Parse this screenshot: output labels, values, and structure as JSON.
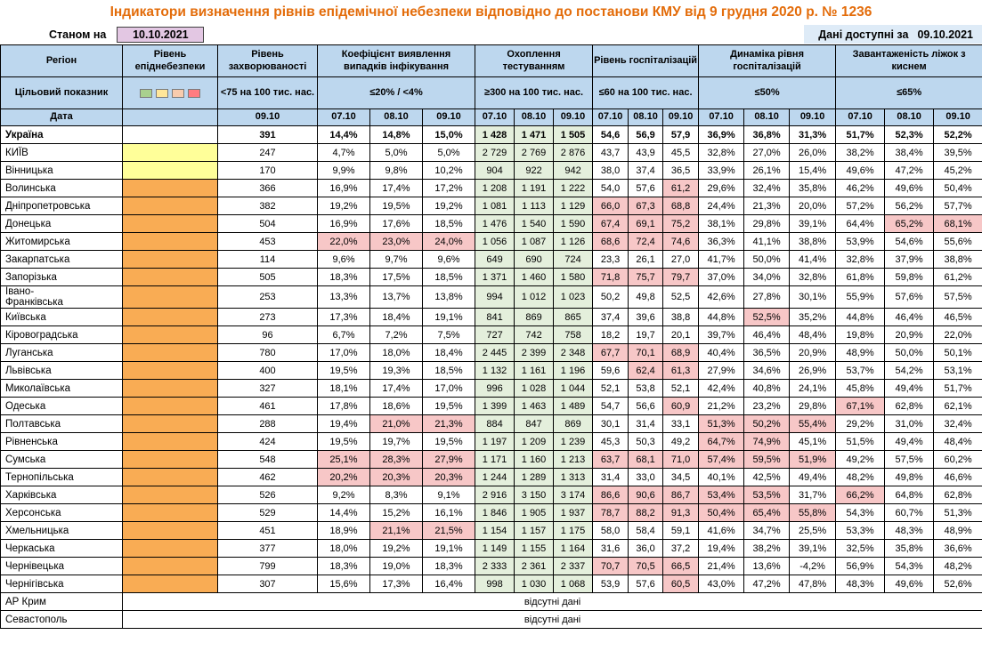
{
  "title": "Індикатори визначення рівнів епідемічної небезпеки відповідно до постанови КМУ від 9 грудня 2020 р. № 1236",
  "meta": {
    "as_of_label": "Станом на",
    "as_of_date": "10.10.2021",
    "available_label": "Дані доступні за",
    "available_date": "09.10.2021"
  },
  "header": {
    "region": "Регіон",
    "target_label": "Цільовий показник",
    "date_label": "Дата",
    "groups": [
      {
        "label": "Рівень епіднебезпеки",
        "cols": 1,
        "target": "",
        "target_legend": [
          "#A9D08E",
          "#FFE699",
          "#F8CBAD",
          "#FF7C80"
        ],
        "dates": [
          ""
        ]
      },
      {
        "label": "Рівень захворюваності",
        "cols": 1,
        "target": "<75 на 100 тис. нас.",
        "dates": [
          "09.10"
        ]
      },
      {
        "label": "Коефіцієнт виявлення випадків інфікування",
        "cols": 3,
        "target": "≤20% / <4%",
        "dates": [
          "07.10",
          "08.10",
          "09.10"
        ]
      },
      {
        "label": "Охоплення тестуванням",
        "cols": 3,
        "target": "≥300 на 100 тис. нас.",
        "dates": [
          "07.10",
          "08.10",
          "09.10"
        ]
      },
      {
        "label": "Рівень госпіталізацій",
        "cols": 3,
        "target": "≤60 на 100 тис. нас.",
        "dates": [
          "07.10",
          "08.10",
          "09.10"
        ]
      },
      {
        "label": "Динаміка рівня госпіталізацій",
        "cols": 3,
        "target": "≤50%",
        "dates": [
          "07.10",
          "08.10",
          "09.10"
        ]
      },
      {
        "label": "Завантаженість ліжок з киснем",
        "cols": 3,
        "target": "≤65%",
        "dates": [
          "07.10",
          "08.10",
          "09.10"
        ]
      }
    ]
  },
  "thresholds": {
    "detection_max": 20,
    "hosp_max": 60,
    "dynamics_max": 50,
    "beds_max": 65
  },
  "rows": [
    {
      "region": "Україна",
      "bold": true,
      "level": "none",
      "incidence": "391",
      "detection": [
        "14,4%",
        "14,8%",
        "15,0%"
      ],
      "testing": [
        "1 428",
        "1 471",
        "1 505"
      ],
      "hosp": [
        "54,6",
        "56,9",
        "57,9"
      ],
      "dynamics": [
        "36,9%",
        "36,8%",
        "31,3%"
      ],
      "beds": [
        "51,7%",
        "52,3%",
        "52,2%"
      ]
    },
    {
      "region": "КИЇВ",
      "bold": false,
      "level": "yellow",
      "incidence": "247",
      "detection": [
        "4,7%",
        "5,0%",
        "5,0%"
      ],
      "testing": [
        "2 729",
        "2 769",
        "2 876"
      ],
      "hosp": [
        "43,7",
        "43,9",
        "45,5"
      ],
      "dynamics": [
        "32,8%",
        "27,0%",
        "26,0%"
      ],
      "beds": [
        "38,2%",
        "38,4%",
        "39,5%"
      ]
    },
    {
      "region": "Вінницька",
      "bold": false,
      "level": "yellow",
      "incidence": "170",
      "detection": [
        "9,9%",
        "9,8%",
        "10,2%"
      ],
      "testing": [
        "904",
        "922",
        "942"
      ],
      "hosp": [
        "38,0",
        "37,4",
        "36,5"
      ],
      "dynamics": [
        "33,9%",
        "26,1%",
        "15,4%"
      ],
      "beds": [
        "49,6%",
        "47,2%",
        "45,2%"
      ]
    },
    {
      "region": "Волинська",
      "bold": false,
      "level": "orange",
      "incidence": "366",
      "detection": [
        "16,9%",
        "17,4%",
        "17,2%"
      ],
      "testing": [
        "1 208",
        "1 191",
        "1 222"
      ],
      "hosp": [
        "54,0",
        "57,6",
        "61,2"
      ],
      "dynamics": [
        "29,6%",
        "32,4%",
        "35,8%"
      ],
      "beds": [
        "46,2%",
        "49,6%",
        "50,4%"
      ]
    },
    {
      "region": "Дніпропетровська",
      "bold": false,
      "level": "orange",
      "incidence": "382",
      "detection": [
        "19,2%",
        "19,5%",
        "19,2%"
      ],
      "testing": [
        "1 081",
        "1 113",
        "1 129"
      ],
      "hosp": [
        "66,0",
        "67,3",
        "68,8"
      ],
      "dynamics": [
        "24,4%",
        "21,3%",
        "20,0%"
      ],
      "beds": [
        "57,2%",
        "56,2%",
        "57,7%"
      ]
    },
    {
      "region": "Донецька",
      "bold": false,
      "level": "orange",
      "incidence": "504",
      "detection": [
        "16,9%",
        "17,6%",
        "18,5%"
      ],
      "testing": [
        "1 476",
        "1 540",
        "1 590"
      ],
      "hosp": [
        "67,4",
        "69,1",
        "75,2"
      ],
      "dynamics": [
        "38,1%",
        "29,8%",
        "39,1%"
      ],
      "beds": [
        "64,4%",
        "65,2%",
        "68,1%"
      ]
    },
    {
      "region": "Житомирська",
      "bold": false,
      "level": "orange",
      "incidence": "453",
      "detection": [
        "22,0%",
        "23,0%",
        "24,0%"
      ],
      "testing": [
        "1 056",
        "1 087",
        "1 126"
      ],
      "hosp": [
        "68,6",
        "72,4",
        "74,6"
      ],
      "dynamics": [
        "36,3%",
        "41,1%",
        "38,8%"
      ],
      "beds": [
        "53,9%",
        "54,6%",
        "55,6%"
      ]
    },
    {
      "region": "Закарпатська",
      "bold": false,
      "level": "orange",
      "incidence": "114",
      "detection": [
        "9,6%",
        "9,7%",
        "9,6%"
      ],
      "testing": [
        "649",
        "690",
        "724"
      ],
      "hosp": [
        "23,3",
        "26,1",
        "27,0"
      ],
      "dynamics": [
        "41,7%",
        "50,0%",
        "41,4%"
      ],
      "beds": [
        "32,8%",
        "37,9%",
        "38,8%"
      ]
    },
    {
      "region": "Запорізька",
      "bold": false,
      "level": "orange",
      "incidence": "505",
      "detection": [
        "18,3%",
        "17,5%",
        "18,5%"
      ],
      "testing": [
        "1 371",
        "1 460",
        "1 580"
      ],
      "hosp": [
        "71,8",
        "75,7",
        "79,7"
      ],
      "dynamics": [
        "37,0%",
        "34,0%",
        "32,8%"
      ],
      "beds": [
        "61,8%",
        "59,8%",
        "61,2%"
      ]
    },
    {
      "region": "Івано-\nФранківська",
      "bold": false,
      "level": "orange",
      "incidence": "253",
      "detection": [
        "13,3%",
        "13,7%",
        "13,8%"
      ],
      "testing": [
        "994",
        "1 012",
        "1 023"
      ],
      "hosp": [
        "50,2",
        "49,8",
        "52,5"
      ],
      "dynamics": [
        "42,6%",
        "27,8%",
        "30,1%"
      ],
      "beds": [
        "55,9%",
        "57,6%",
        "57,5%"
      ]
    },
    {
      "region": "Київська",
      "bold": false,
      "level": "orange",
      "incidence": "273",
      "detection": [
        "17,3%",
        "18,4%",
        "19,1%"
      ],
      "testing": [
        "841",
        "869",
        "865"
      ],
      "hosp": [
        "37,4",
        "39,6",
        "38,8"
      ],
      "dynamics": [
        "44,8%",
        "52,5%",
        "35,2%"
      ],
      "beds": [
        "44,8%",
        "46,4%",
        "46,5%"
      ]
    },
    {
      "region": "Кіровоградська",
      "bold": false,
      "level": "orange",
      "incidence": "96",
      "detection": [
        "6,7%",
        "7,2%",
        "7,5%"
      ],
      "testing": [
        "727",
        "742",
        "758"
      ],
      "hosp": [
        "18,2",
        "19,7",
        "20,1"
      ],
      "dynamics": [
        "39,7%",
        "46,4%",
        "48,4%"
      ],
      "beds": [
        "19,8%",
        "20,9%",
        "22,0%"
      ]
    },
    {
      "region": "Луганська",
      "bold": false,
      "level": "orange",
      "incidence": "780",
      "detection": [
        "17,0%",
        "18,0%",
        "18,4%"
      ],
      "testing": [
        "2 445",
        "2 399",
        "2 348"
      ],
      "hosp": [
        "67,7",
        "70,1",
        "68,9"
      ],
      "dynamics": [
        "40,4%",
        "36,5%",
        "20,9%"
      ],
      "beds": [
        "48,9%",
        "50,0%",
        "50,1%"
      ]
    },
    {
      "region": "Львівська",
      "bold": false,
      "level": "orange",
      "incidence": "400",
      "detection": [
        "19,5%",
        "19,3%",
        "18,5%"
      ],
      "testing": [
        "1 132",
        "1 161",
        "1 196"
      ],
      "hosp": [
        "59,6",
        "62,4",
        "61,3"
      ],
      "dynamics": [
        "27,9%",
        "34,6%",
        "26,9%"
      ],
      "beds": [
        "53,7%",
        "54,2%",
        "53,1%"
      ]
    },
    {
      "region": "Миколаївська",
      "bold": false,
      "level": "orange",
      "incidence": "327",
      "detection": [
        "18,1%",
        "17,4%",
        "17,0%"
      ],
      "testing": [
        "996",
        "1 028",
        "1 044"
      ],
      "hosp": [
        "52,1",
        "53,8",
        "52,1"
      ],
      "dynamics": [
        "42,4%",
        "40,8%",
        "24,1%"
      ],
      "beds": [
        "45,8%",
        "49,4%",
        "51,7%"
      ]
    },
    {
      "region": "Одеська",
      "bold": false,
      "level": "orange",
      "incidence": "461",
      "detection": [
        "17,8%",
        "18,6%",
        "19,5%"
      ],
      "testing": [
        "1 399",
        "1 463",
        "1 489"
      ],
      "hosp": [
        "54,7",
        "56,6",
        "60,9"
      ],
      "dynamics": [
        "21,2%",
        "23,2%",
        "29,8%"
      ],
      "beds": [
        "67,1%",
        "62,8%",
        "62,1%"
      ]
    },
    {
      "region": "Полтавська",
      "bold": false,
      "level": "orange",
      "incidence": "288",
      "detection": [
        "19,4%",
        "21,0%",
        "21,3%"
      ],
      "testing": [
        "884",
        "847",
        "869"
      ],
      "hosp": [
        "30,1",
        "31,4",
        "33,1"
      ],
      "dynamics": [
        "51,3%",
        "50,2%",
        "55,4%"
      ],
      "beds": [
        "29,2%",
        "31,0%",
        "32,4%"
      ]
    },
    {
      "region": "Рівненська",
      "bold": false,
      "level": "orange",
      "incidence": "424",
      "detection": [
        "19,5%",
        "19,7%",
        "19,5%"
      ],
      "testing": [
        "1 197",
        "1 209",
        "1 239"
      ],
      "hosp": [
        "45,3",
        "50,3",
        "49,2"
      ],
      "dynamics": [
        "64,7%",
        "74,9%",
        "45,1%"
      ],
      "beds": [
        "51,5%",
        "49,4%",
        "48,4%"
      ]
    },
    {
      "region": "Сумська",
      "bold": false,
      "level": "orange",
      "incidence": "548",
      "detection": [
        "25,1%",
        "28,3%",
        "27,9%"
      ],
      "testing": [
        "1 171",
        "1 160",
        "1 213"
      ],
      "hosp": [
        "63,7",
        "68,1",
        "71,0"
      ],
      "dynamics": [
        "57,4%",
        "59,5%",
        "51,9%"
      ],
      "beds": [
        "49,2%",
        "57,5%",
        "60,2%"
      ]
    },
    {
      "region": "Тернопільська",
      "bold": false,
      "level": "orange",
      "incidence": "462",
      "detection": [
        "20,2%",
        "20,3%",
        "20,3%"
      ],
      "testing": [
        "1 244",
        "1 289",
        "1 313"
      ],
      "hosp": [
        "31,4",
        "33,0",
        "34,5"
      ],
      "dynamics": [
        "40,1%",
        "42,5%",
        "49,4%"
      ],
      "beds": [
        "48,2%",
        "49,8%",
        "46,6%"
      ]
    },
    {
      "region": "Харківська",
      "bold": false,
      "level": "orange",
      "incidence": "526",
      "detection": [
        "9,2%",
        "8,3%",
        "9,1%"
      ],
      "testing": [
        "2 916",
        "3 150",
        "3 174"
      ],
      "hosp": [
        "86,6",
        "90,6",
        "86,7"
      ],
      "dynamics": [
        "53,4%",
        "53,5%",
        "31,7%"
      ],
      "beds": [
        "66,2%",
        "64,8%",
        "62,8%"
      ]
    },
    {
      "region": "Херсонська",
      "bold": false,
      "level": "orange",
      "incidence": "529",
      "detection": [
        "14,4%",
        "15,2%",
        "16,1%"
      ],
      "testing": [
        "1 846",
        "1 905",
        "1 937"
      ],
      "hosp": [
        "78,7",
        "88,2",
        "91,3"
      ],
      "dynamics": [
        "50,4%",
        "65,4%",
        "55,8%"
      ],
      "beds": [
        "54,3%",
        "60,7%",
        "51,3%"
      ]
    },
    {
      "region": "Хмельницька",
      "bold": false,
      "level": "orange",
      "incidence": "451",
      "detection": [
        "18,9%",
        "21,1%",
        "21,5%"
      ],
      "testing": [
        "1 154",
        "1 157",
        "1 175"
      ],
      "hosp": [
        "58,0",
        "58,4",
        "59,1"
      ],
      "dynamics": [
        "41,6%",
        "34,7%",
        "25,5%"
      ],
      "beds": [
        "53,3%",
        "48,3%",
        "48,9%"
      ]
    },
    {
      "region": "Черкаська",
      "bold": false,
      "level": "orange",
      "incidence": "377",
      "detection": [
        "18,0%",
        "19,2%",
        "19,1%"
      ],
      "testing": [
        "1 149",
        "1 155",
        "1 164"
      ],
      "hosp": [
        "31,6",
        "36,0",
        "37,2"
      ],
      "dynamics": [
        "19,4%",
        "38,2%",
        "39,1%"
      ],
      "beds": [
        "32,5%",
        "35,8%",
        "36,6%"
      ]
    },
    {
      "region": "Чернівецька",
      "bold": false,
      "level": "orange",
      "incidence": "799",
      "detection": [
        "18,3%",
        "19,0%",
        "18,3%"
      ],
      "testing": [
        "2 333",
        "2 361",
        "2 337"
      ],
      "hosp": [
        "70,7",
        "70,5",
        "66,5"
      ],
      "dynamics": [
        "21,4%",
        "13,6%",
        "-4,2%"
      ],
      "beds": [
        "56,9%",
        "54,3%",
        "48,2%"
      ]
    },
    {
      "region": "Чернігівська",
      "bold": false,
      "level": "orange",
      "incidence": "307",
      "detection": [
        "15,6%",
        "17,3%",
        "16,4%"
      ],
      "testing": [
        "998",
        "1 030",
        "1 068"
      ],
      "hosp": [
        "53,9",
        "57,6",
        "60,5"
      ],
      "dynamics": [
        "43,0%",
        "47,2%",
        "47,8%"
      ],
      "beds": [
        "48,3%",
        "49,6%",
        "52,6%"
      ]
    }
  ],
  "no_data_rows": [
    {
      "region": "АР Крим",
      "text": "відсутні дані"
    },
    {
      "region": "Севастополь",
      "text": "відсутні дані"
    }
  ],
  "colors": {
    "title": "#E36C0A",
    "header_bg": "#BDD7EE",
    "alert_bg": "#F7C7C7",
    "ok_bg": "#E4EFDC",
    "level_yellow": "#FFFF99",
    "level_orange": "#F9AC54",
    "date_box_bg": "#E3C7E3",
    "available_bg": "#DEEBF7"
  }
}
